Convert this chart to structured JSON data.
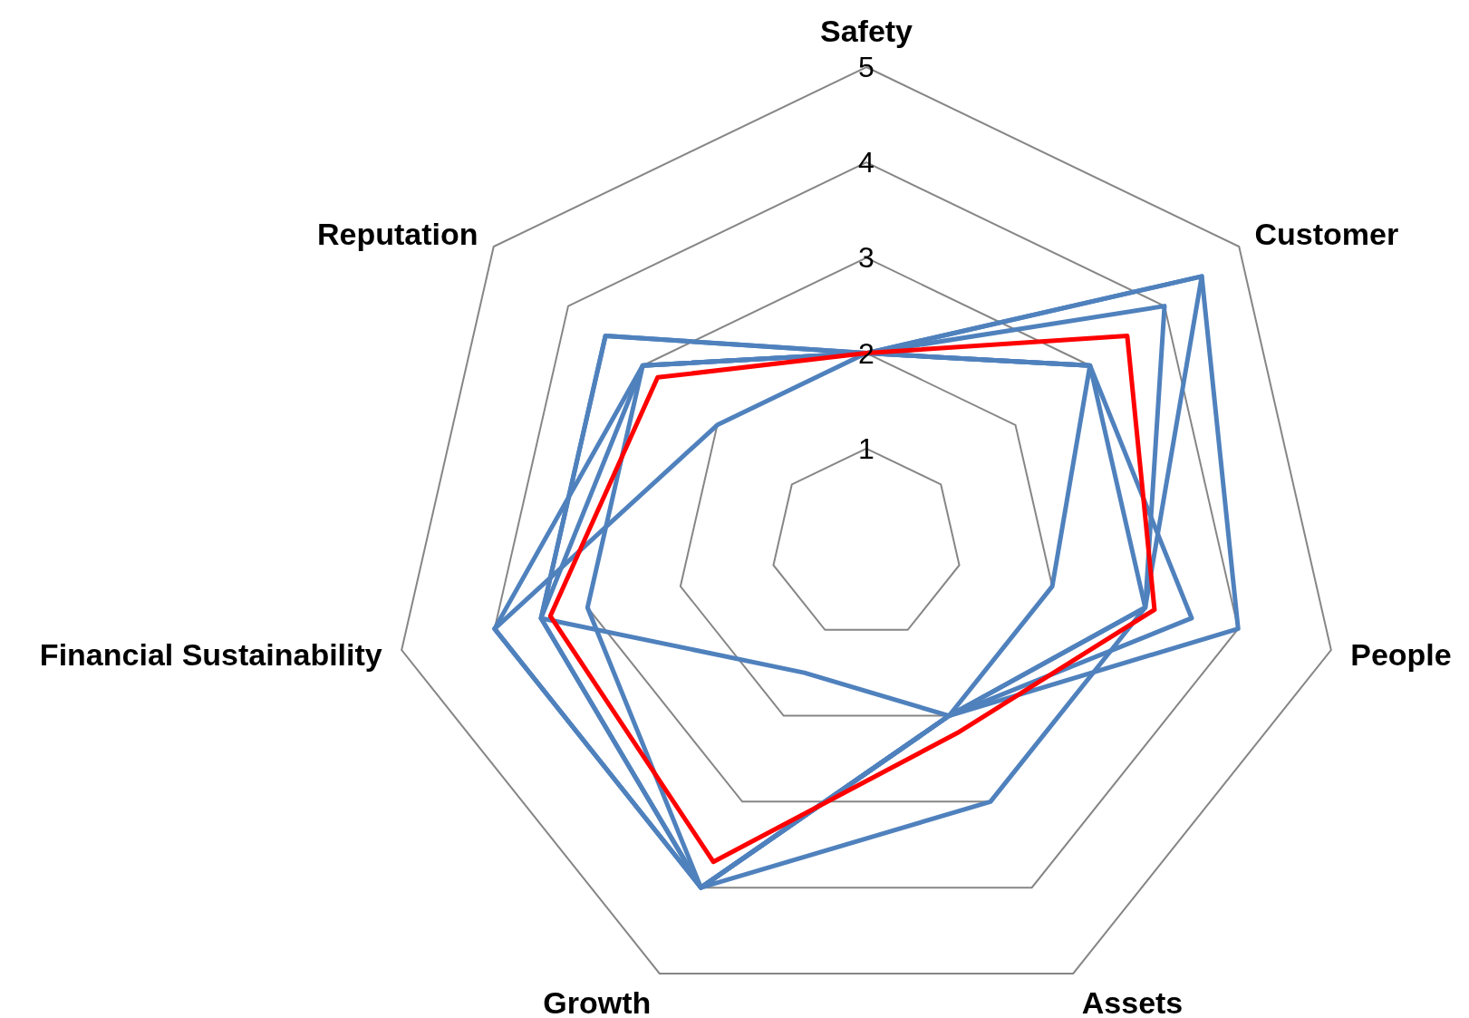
{
  "chart_data": {
    "type": "radar",
    "categories": [
      "Safety",
      "Customer",
      "People",
      "Assets",
      "Growth",
      "Financial Sustainability",
      "Reputation"
    ],
    "ylim": [
      0,
      5
    ],
    "yticks": [
      1,
      2,
      3,
      4,
      5
    ],
    "grid": true,
    "series": [
      {
        "color": "#4f81bd",
        "values": [
          2,
          3,
          2,
          2,
          4,
          4,
          2
        ]
      },
      {
        "color": "#4f81bd",
        "values": [
          2,
          3,
          3,
          3,
          4,
          3,
          3
        ]
      },
      {
        "color": "#4f81bd",
        "values": [
          2,
          3,
          3.5,
          2,
          1.5,
          3.5,
          3.5
        ]
      },
      {
        "color": "#4f81bd",
        "values": [
          2,
          4.5,
          4,
          2,
          4,
          4,
          3
        ]
      },
      {
        "color": "#4f81bd",
        "values": [
          2,
          4,
          3,
          2,
          4,
          3.5,
          3
        ]
      },
      {
        "color": "#4f81bd",
        "values": [
          2,
          4.5,
          3,
          2,
          4,
          3.5,
          3.5
        ]
      },
      {
        "color": "#ff0000",
        "values": [
          2,
          3.5,
          3.1,
          2.2,
          3.7,
          3.4,
          2.8
        ]
      }
    ]
  }
}
